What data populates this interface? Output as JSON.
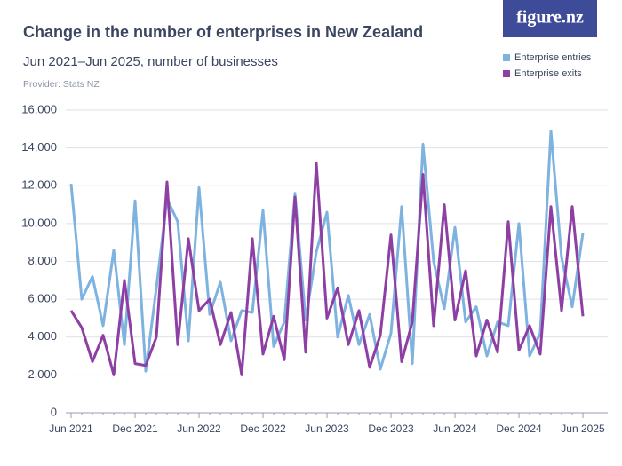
{
  "logo": "figure.nz",
  "chart_data": {
    "type": "line",
    "title": "Change in the number of enterprises in New Zealand",
    "subtitle": "Jun 2021–Jun 2025, number of businesses",
    "provider": "Provider: Stats NZ",
    "categories": [
      "Jun 2021",
      null,
      null,
      null,
      null,
      null,
      "Dec 2021",
      null,
      null,
      null,
      null,
      null,
      "Jun 2022",
      null,
      null,
      null,
      null,
      null,
      "Dec 2022",
      null,
      null,
      null,
      null,
      null,
      "Jun 2023",
      null,
      null,
      null,
      null,
      null,
      "Dec 2023",
      null,
      null,
      null,
      null,
      null,
      "Jun 2024",
      null,
      null,
      null,
      null,
      null,
      "Dec 2024",
      null,
      null,
      null,
      null,
      null,
      "Jun 2025"
    ],
    "series": [
      {
        "name": "Enterprise entries",
        "color": "#7eb3e0",
        "values": [
          12100,
          6000,
          7200,
          4600,
          8600,
          3600,
          11200,
          2200,
          6600,
          11300,
          10100,
          3800,
          11900,
          5200,
          6900,
          3800,
          5400,
          5300,
          10700,
          3500,
          4800,
          11600,
          4900,
          8500,
          10600,
          4000,
          6200,
          3600,
          5200,
          2300,
          4200,
          10900,
          2600,
          14200,
          8000,
          5500,
          9800,
          4800,
          5600,
          3000,
          4800,
          4600,
          10000,
          3000,
          4200,
          14900,
          8200,
          5600,
          9500
        ]
      },
      {
        "name": "Enterprise exits",
        "color": "#8e3fa3",
        "values": [
          5400,
          4500,
          2700,
          4100,
          2000,
          7000,
          2600,
          2500,
          4000,
          12200,
          3600,
          9200,
          5400,
          6000,
          3600,
          5300,
          2000,
          9200,
          3100,
          5100,
          2800,
          11400,
          3200,
          13200,
          5000,
          6600,
          3600,
          5400,
          2400,
          4100,
          9400,
          2700,
          4800,
          12600,
          4600,
          11000,
          4900,
          7500,
          3000,
          4900,
          3200,
          10100,
          3300,
          4600,
          3100,
          10900,
          5400,
          10900,
          5100
        ]
      }
    ],
    "ylim": [
      0,
      16000
    ],
    "yticks": [
      0,
      {
        "value": 2000,
        "label": "2,000"
      },
      {
        "value": 4000,
        "label": "4,000"
      },
      {
        "value": 6000,
        "label": "6,000"
      },
      {
        "value": 8000,
        "label": "8,000"
      },
      {
        "value": 10000,
        "label": "10,000"
      },
      {
        "value": 12000,
        "label": "12,000"
      },
      {
        "value": 14000,
        "label": "14,000"
      },
      {
        "value": 16000,
        "label": "16,000"
      }
    ],
    "grid": true,
    "legend": "top-right"
  }
}
